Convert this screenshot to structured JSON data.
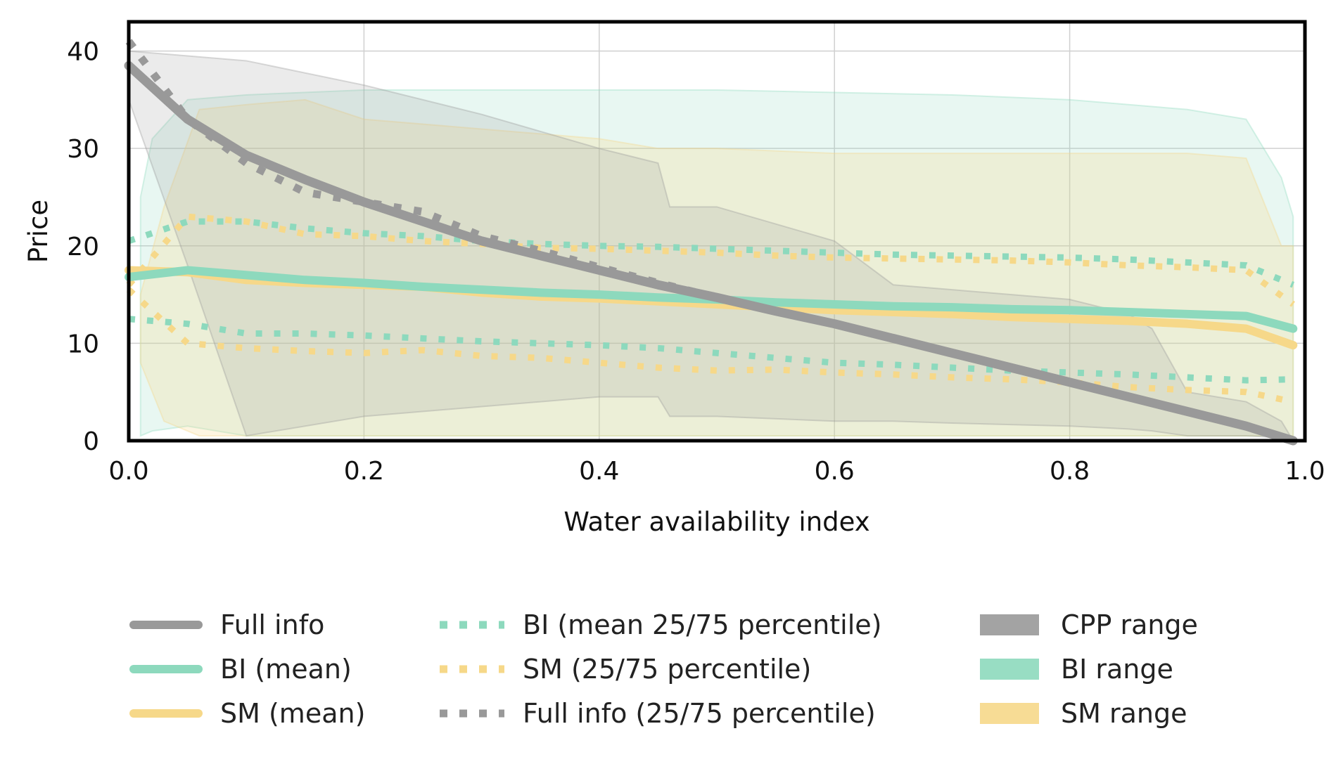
{
  "chart_data": {
    "type": "line",
    "xlabel": "Water availability index",
    "ylabel": "Price",
    "xlim": [
      0.0,
      1.0
    ],
    "ylim": [
      0,
      43
    ],
    "x_ticks": [
      "0.0",
      "0.2",
      "0.4",
      "0.6",
      "0.8",
      "1.0"
    ],
    "y_ticks": [
      "0",
      "10",
      "20",
      "30",
      "40"
    ],
    "grid": true,
    "legend_position": "bottom",
    "colors": {
      "full": "#999999",
      "bi": "#8dd9bd",
      "sm": "#f6d889"
    },
    "ranges": [
      {
        "name": "CPP range",
        "color": "#999999",
        "x": [
          0.0,
          0.05,
          0.1,
          0.2,
          0.3,
          0.4,
          0.45,
          0.46,
          0.5,
          0.6,
          0.65,
          0.7,
          0.8,
          0.85,
          0.87,
          0.9,
          0.95,
          0.98,
          0.99
        ],
        "upper": [
          40,
          39.5,
          39,
          36.5,
          33.5,
          30,
          28.5,
          24,
          24,
          20.5,
          16,
          15.5,
          14.5,
          13,
          11.5,
          5,
          4,
          2,
          0
        ],
        "lower": [
          35,
          18,
          0.5,
          2.5,
          3.5,
          4.5,
          4.5,
          2.5,
          2.5,
          2,
          2,
          1.8,
          1.5,
          1.2,
          1,
          0.5,
          0.5,
          0.3,
          0
        ]
      },
      {
        "name": "BI range",
        "color": "#8dd9bd",
        "x": [
          0.01,
          0.02,
          0.05,
          0.1,
          0.2,
          0.3,
          0.5,
          0.7,
          0.8,
          0.9,
          0.95,
          0.98,
          0.99
        ],
        "upper": [
          25,
          31,
          35,
          35.5,
          36,
          36,
          36,
          35.5,
          35,
          34,
          33,
          27,
          23
        ],
        "lower": [
          0.5,
          1,
          1.5,
          0.5,
          0.5,
          0.5,
          0.5,
          0.5,
          0.5,
          0.5,
          0.5,
          0.5,
          0.5
        ]
      },
      {
        "name": "SM range",
        "color": "#f6d889",
        "x": [
          0.01,
          0.03,
          0.06,
          0.1,
          0.15,
          0.2,
          0.3,
          0.4,
          0.45,
          0.5,
          0.6,
          0.65,
          0.7,
          0.8,
          0.9,
          0.95,
          0.98,
          0.99
        ],
        "upper": [
          15,
          24,
          34,
          34.5,
          35,
          33,
          32,
          31,
          30,
          30,
          29.5,
          29.5,
          29.5,
          29.5,
          29.5,
          29,
          20,
          20
        ],
        "lower": [
          8,
          2,
          0.5,
          0.5,
          0.5,
          0.5,
          0.5,
          0.5,
          0.5,
          0.5,
          0.5,
          0.5,
          0.5,
          0.5,
          0.5,
          0.5,
          0.5,
          0.5
        ]
      }
    ],
    "x": [
      0.0,
      0.05,
      0.1,
      0.15,
      0.2,
      0.25,
      0.3,
      0.35,
      0.4,
      0.45,
      0.5,
      0.55,
      0.6,
      0.65,
      0.7,
      0.75,
      0.8,
      0.85,
      0.9,
      0.95,
      0.99
    ],
    "series": [
      {
        "name": "Full info",
        "style": "solid",
        "color": "#999999",
        "values": [
          38.5,
          33,
          29.3,
          26.8,
          24.5,
          22.5,
          20.5,
          19,
          17.5,
          16,
          14.7,
          13.3,
          12,
          10.5,
          9,
          7.5,
          6,
          4.5,
          3,
          1.5,
          0
        ]
      },
      {
        "name": "BI (mean)",
        "style": "solid",
        "color": "#8dd9bd",
        "values": [
          16.8,
          17.5,
          17,
          16.5,
          16.2,
          15.8,
          15.5,
          15.2,
          15,
          14.7,
          14.5,
          14.2,
          14,
          13.8,
          13.7,
          13.5,
          13.4,
          13.2,
          13,
          12.8,
          11.5
        ]
      },
      {
        "name": "SM (mean)",
        "style": "solid",
        "color": "#f6d889",
        "values": [
          17.5,
          17.3,
          16.5,
          16.2,
          16,
          15.8,
          15.2,
          14.8,
          14.6,
          14.3,
          14,
          13.7,
          13.4,
          13.2,
          13,
          12.7,
          12.5,
          12.3,
          12,
          11.5,
          9.8
        ]
      },
      {
        "name": "BI (mean 25/75 percentile)",
        "style": "dotted",
        "color": "#8dd9bd",
        "values": [
          20.5,
          22.5,
          22.5,
          21.8,
          21.3,
          21,
          20.5,
          20.2,
          20,
          19.9,
          19.7,
          19.5,
          19.3,
          19.1,
          19,
          18.9,
          18.8,
          18.6,
          18.3,
          18,
          16
        ]
      },
      {
        "name": "BI (mean 25/75 percentile)",
        "style": "dotted",
        "color": "#8dd9bd",
        "values": [
          12.5,
          12,
          11,
          11,
          10.8,
          10.5,
          10.2,
          10,
          9.8,
          9.5,
          9,
          8.5,
          8,
          7.8,
          7.5,
          7.2,
          7,
          6.8,
          6.5,
          6.2,
          6.3
        ]
      },
      {
        "name": "SM (25/75 percentile)",
        "style": "dotted",
        "color": "#f6d889",
        "values": [
          16,
          23,
          22.5,
          21.2,
          21,
          20.5,
          20.2,
          19.8,
          19.7,
          19.5,
          19.3,
          19,
          18.8,
          18.7,
          18.6,
          18.5,
          18.3,
          18,
          17.8,
          17.5,
          14
        ]
      },
      {
        "name": "SM (25/75 percentile)",
        "style": "dotted",
        "color": "#f6d889",
        "values": [
          15.5,
          10,
          9.5,
          9.2,
          9,
          9.3,
          8.7,
          8.5,
          8,
          7.5,
          7.2,
          7.3,
          7,
          6.8,
          6.5,
          6.3,
          6,
          5.5,
          5.2,
          5,
          4
        ]
      },
      {
        "name": "Full info (25/75 percentile)",
        "style": "dotted",
        "color": "#999999",
        "values": [
          41,
          33,
          28.5,
          25.5,
          24.5,
          23.5,
          21,
          19.5,
          17.8,
          16.2,
          14.7,
          13.3,
          12,
          10.5,
          9,
          7.5,
          6,
          4.5,
          3,
          1.5,
          0
        ]
      }
    ],
    "legend": [
      {
        "label": "Full info",
        "kind": "line",
        "color": "#999999"
      },
      {
        "label": "BI (mean)",
        "kind": "line",
        "color": "#8dd9bd"
      },
      {
        "label": "SM (mean)",
        "kind": "line",
        "color": "#f6d889"
      },
      {
        "label": "BI (mean 25/75 percentile)",
        "kind": "dotted",
        "color": "#8dd9bd"
      },
      {
        "label": "SM (25/75 percentile)",
        "kind": "dotted",
        "color": "#f6d889"
      },
      {
        "label": "Full info (25/75 percentile)",
        "kind": "dotted",
        "color": "#999999"
      },
      {
        "label": "CPP range",
        "kind": "patch",
        "color": "#999999"
      },
      {
        "label": "BI range",
        "kind": "patch",
        "color": "#8dd9bd"
      },
      {
        "label": "SM range",
        "kind": "patch",
        "color": "#f6d889"
      }
    ]
  }
}
